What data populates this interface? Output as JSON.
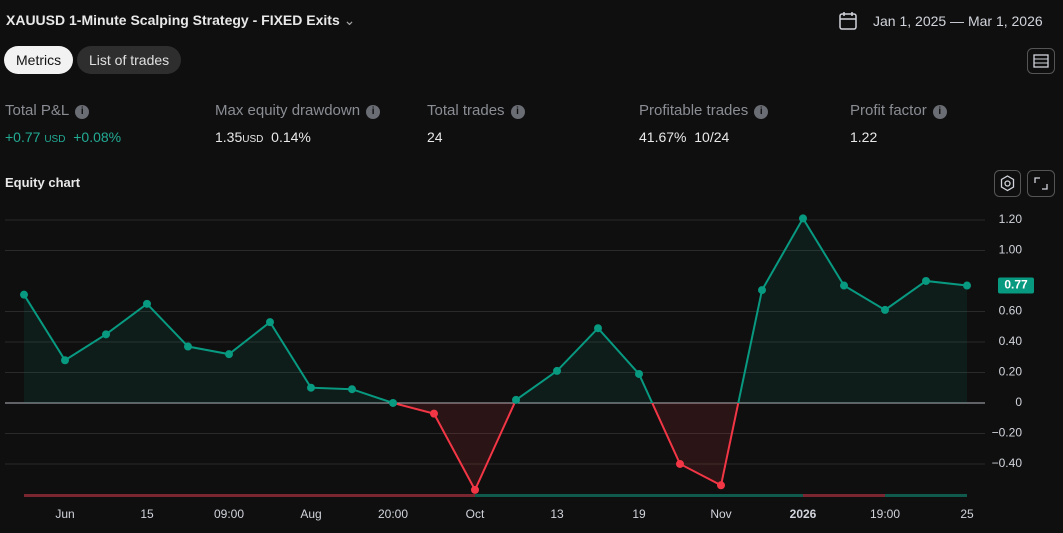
{
  "header": {
    "title": "XAUUSD 1-Minute Scalping Strategy - FIXED Exits",
    "date_range": "Jan 1, 2025 — Mar 1, 2026"
  },
  "tabs": [
    "Metrics",
    "List of trades"
  ],
  "metrics": [
    {
      "label": "Total P&L",
      "value": "+0.77",
      "unit": "USD",
      "secondary": "+0.08%"
    },
    {
      "label": "Max equity drawdown",
      "value": "1.35",
      "unit": "USD",
      "secondary": "0.14%"
    },
    {
      "label": "Total trades",
      "value": "24"
    },
    {
      "label": "Profitable trades",
      "value": "41.67%",
      "secondary": "10/24"
    },
    {
      "label": "Profit factor",
      "value": "1.22"
    }
  ],
  "chart_data": {
    "type": "line",
    "title": "Equity chart",
    "categories": [
      null,
      "Jun",
      null,
      "15",
      null,
      "09:00",
      null,
      "Aug",
      null,
      "20:00",
      null,
      "Oct",
      null,
      "13",
      null,
      "19",
      null,
      "Nov",
      null,
      "2026",
      null,
      "19:00",
      null,
      "25"
    ],
    "series": [
      {
        "name": "Equity",
        "color": "#089981",
        "negative_color": "#f23645",
        "values": [
          0.71,
          0.28,
          0.45,
          0.65,
          0.37,
          0.32,
          0.53,
          0.1,
          0.09,
          0.0,
          -0.07,
          -0.57,
          0.02,
          0.21,
          0.49,
          0.19,
          -0.4,
          -0.54,
          0.74,
          1.21,
          0.77,
          0.61,
          0.8,
          0.77
        ]
      }
    ],
    "ylim": [
      -0.62,
      1.34
    ],
    "yticks": [
      {
        "value": 1.2,
        "label": "1.20"
      },
      {
        "value": 1,
        "label": "1.00"
      },
      {
        "value": 0.6,
        "label": "0.60"
      },
      {
        "value": 0.4,
        "label": "0.40"
      },
      {
        "value": 0.2,
        "label": "0.20"
      },
      0,
      {
        "value": -0.2,
        "label": "−0.20"
      },
      {
        "value": -0.4,
        "label": "−0.40"
      }
    ],
    "grid": true
  }
}
